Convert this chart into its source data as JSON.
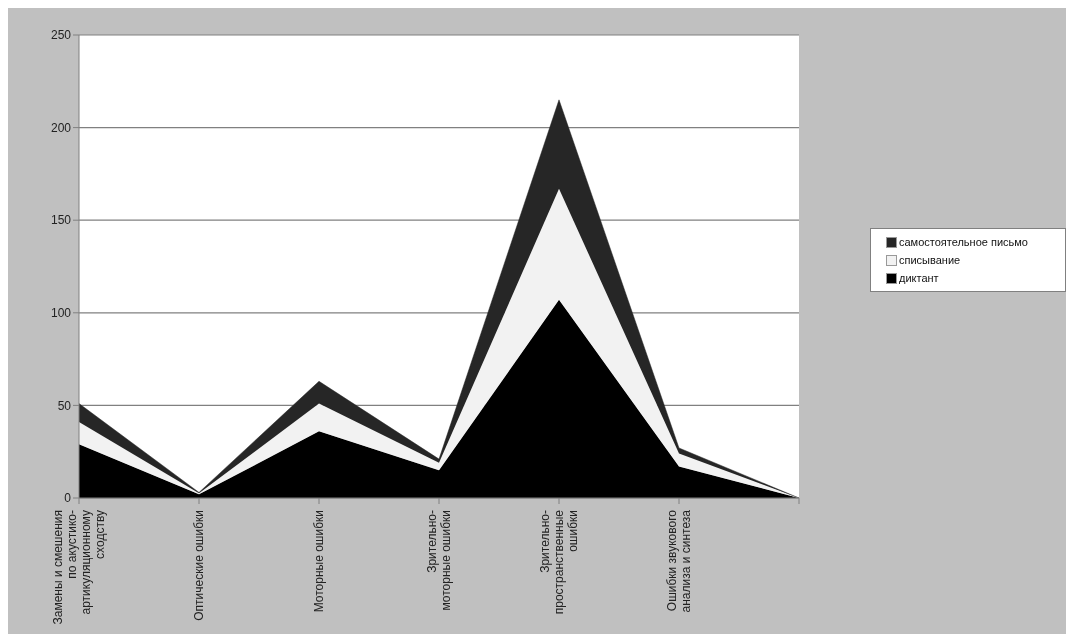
{
  "chart_data": {
    "type": "area",
    "stacked": true,
    "categories": [
      "Замены и смешения по акустико-артикуляционному сходству",
      "Оптические ошибки",
      "Моторные ошибки",
      "Зрительно-моторные ошибки",
      "Зрительно-пространственные ошибки",
      "Ошибки звукового анализа и синтеза",
      null
    ],
    "series": [
      {
        "name": "диктант",
        "color": "#000000",
        "values": [
          29,
          2,
          36,
          15,
          107,
          17,
          0
        ]
      },
      {
        "name": "списывание",
        "color": "#f2f2f2",
        "values": [
          12,
          0.5,
          15,
          4,
          60,
          7,
          0
        ]
      },
      {
        "name": "самостоятельное письмо",
        "color": "#262626",
        "values": [
          10,
          0.5,
          12,
          2,
          48,
          3,
          0
        ]
      }
    ],
    "ylim": [
      0,
      250
    ],
    "yticks": [
      0,
      50,
      100,
      150,
      200,
      250
    ],
    "grid": "y",
    "legend": "right"
  }
}
